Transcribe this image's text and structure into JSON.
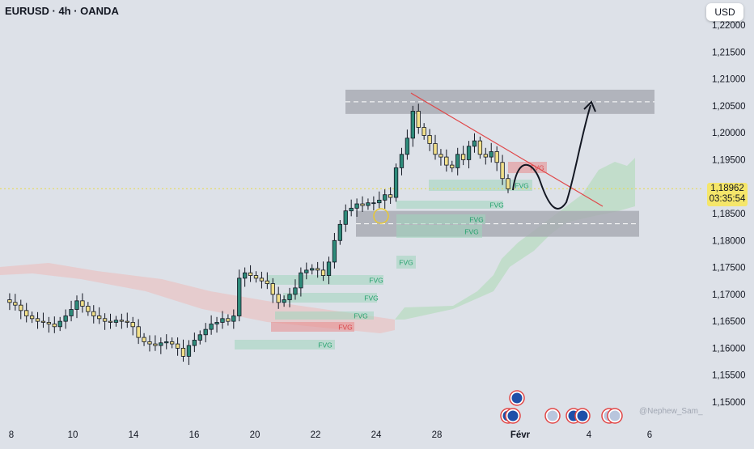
{
  "header": {
    "symbol_title": "EURUSD · 4h · OANDA",
    "currency_button": "USD"
  },
  "price_label": {
    "price": "1,18962",
    "countdown": "03:35:54"
  },
  "watermark": "@Nephew_Sam_",
  "colors": {
    "bull": "#2e8b7a",
    "bear": "#f2e08a",
    "candle_border": "#131722",
    "fvg_green": "#9fd6bc",
    "fvg_red": "#e88b8b",
    "zone_gray": "#a6a9b0",
    "trendline": "#e0484a",
    "cloud_green": "#bcdcc3",
    "cloud_red": "#e8c4c6",
    "price_line": "#e8d948"
  },
  "icons": [
    "flag-eu-icon",
    "flag-us-icon"
  ],
  "chart_data": {
    "type": "candlestick",
    "title": "EURUSD · 4h · OANDA",
    "ylim": [
      1.1495,
      1.2235
    ],
    "y_ticks": [
      "1,22000",
      "1,21500",
      "1,21000",
      "1,20500",
      "1,20000",
      "1,19500",
      "1,19000",
      "1,18500",
      "1,18000",
      "1,17500",
      "1,17000",
      "1,16500",
      "1,16000",
      "1,15500",
      "1,15000"
    ],
    "x_ticks": [
      "8",
      "10",
      "14",
      "16",
      "20",
      "22",
      "24",
      "28",
      "Févr",
      "4",
      "6"
    ],
    "current_price": 1.18962,
    "candles_sample": [
      {
        "o": 1.168,
        "h": 1.169,
        "l": 1.1665,
        "c": 1.1672
      },
      {
        "o": 1.1672,
        "h": 1.1688,
        "l": 1.166,
        "c": 1.168
      },
      {
        "o": 1.168,
        "h": 1.1685,
        "l": 1.164,
        "c": 1.165
      },
      {
        "o": 1.165,
        "h": 1.1665,
        "l": 1.162,
        "c": 1.1645
      },
      {
        "o": 1.1645,
        "h": 1.17,
        "l": 1.164,
        "c": 1.169
      },
      {
        "o": 1.169,
        "h": 1.1695,
        "l": 1.165,
        "c": 1.166
      },
      {
        "o": 1.166,
        "h": 1.1668,
        "l": 1.162,
        "c": 1.163
      },
      {
        "o": 1.163,
        "h": 1.165,
        "l": 1.159,
        "c": 1.16
      },
      {
        "o": 1.16,
        "h": 1.1605,
        "l": 1.1578,
        "c": 1.1585
      },
      {
        "o": 1.1585,
        "h": 1.164,
        "l": 1.158,
        "c": 1.1635
      },
      {
        "o": 1.1635,
        "h": 1.166,
        "l": 1.1625,
        "c": 1.165
      },
      {
        "o": 1.165,
        "h": 1.174,
        "l": 1.1648,
        "c": 1.173
      },
      {
        "o": 1.173,
        "h": 1.175,
        "l": 1.17,
        "c": 1.171
      },
      {
        "o": 1.171,
        "h": 1.173,
        "l": 1.1685,
        "c": 1.1695
      },
      {
        "o": 1.1695,
        "h": 1.1745,
        "l": 1.169,
        "c": 1.174
      },
      {
        "o": 1.174,
        "h": 1.1758,
        "l": 1.1728,
        "c": 1.1745
      },
      {
        "o": 1.1745,
        "h": 1.183,
        "l": 1.174,
        "c": 1.1825
      },
      {
        "o": 1.1825,
        "h": 1.187,
        "l": 1.182,
        "c": 1.186
      },
      {
        "o": 1.186,
        "h": 1.188,
        "l": 1.184,
        "c": 1.187
      },
      {
        "o": 1.187,
        "h": 1.195,
        "l": 1.1865,
        "c": 1.194
      },
      {
        "o": 1.194,
        "h": 1.208,
        "l": 1.1935,
        "c": 1.204
      },
      {
        "o": 1.204,
        "h": 1.2045,
        "l": 1.198,
        "c": 1.199
      },
      {
        "o": 1.199,
        "h": 1.1998,
        "l": 1.194,
        "c": 1.195
      },
      {
        "o": 1.195,
        "h": 1.196,
        "l": 1.19,
        "c": 1.1935
      },
      {
        "o": 1.1935,
        "h": 1.199,
        "l": 1.193,
        "c": 1.198
      },
      {
        "o": 1.198,
        "h": 1.1992,
        "l": 1.195,
        "c": 1.196
      },
      {
        "o": 1.196,
        "h": 1.1975,
        "l": 1.192,
        "c": 1.1935
      },
      {
        "o": 1.1935,
        "h": 1.197,
        "l": 1.193,
        "c": 1.1965
      },
      {
        "o": 1.1965,
        "h": 1.1968,
        "l": 1.191,
        "c": 1.1915
      },
      {
        "o": 1.1915,
        "h": 1.192,
        "l": 1.189,
        "c": 1.1896
      }
    ],
    "zones": [
      {
        "kind": "supply",
        "from": 1.2035,
        "to": 1.208
      },
      {
        "kind": "demand",
        "from": 1.181,
        "to": 1.186
      }
    ],
    "fvg_labels": [
      "FVG",
      "FVG",
      "FVG",
      "FVG",
      "FVG",
      "FVG",
      "FVG",
      "FVG",
      "FVG",
      "FVG",
      "FVG"
    ]
  }
}
